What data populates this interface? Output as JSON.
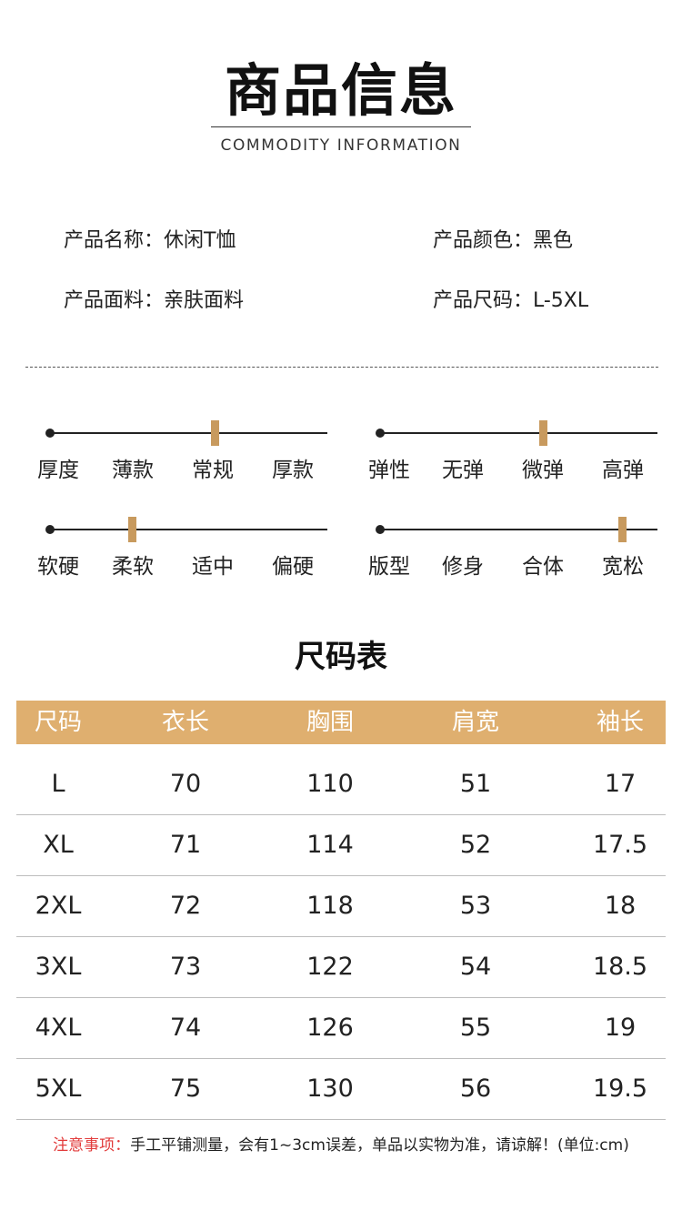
{
  "header": {
    "title": "商品信息",
    "subtitle": "COMMODITY INFORMATION"
  },
  "info": {
    "name": "产品名称：休闲T恤",
    "color": "产品颜色：黑色",
    "fabric": "产品面料：亲肤面料",
    "size": "产品尺码：L-5XL"
  },
  "scales": [
    {
      "labels": [
        "厚度",
        "薄款",
        "常规",
        "厚款"
      ],
      "selected": "常规"
    },
    {
      "labels": [
        "弹性",
        "无弹",
        "微弹",
        "高弹"
      ],
      "selected": "微弹"
    },
    {
      "labels": [
        "软硬",
        "柔软",
        "适中",
        "偏硬"
      ],
      "selected": "柔软"
    },
    {
      "labels": [
        "版型",
        "修身",
        "合体",
        "宽松"
      ],
      "selected": "宽松"
    }
  ],
  "size_chart": {
    "title": "尺码表",
    "headers": [
      "尺码",
      "衣长",
      "胸围",
      "肩宽",
      "袖长"
    ],
    "rows": [
      [
        "L",
        "70",
        "110",
        "51",
        "17"
      ],
      [
        "XL",
        "71",
        "114",
        "52",
        "17.5"
      ],
      [
        "2XL",
        "72",
        "118",
        "53",
        "18"
      ],
      [
        "3XL",
        "73",
        "122",
        "54",
        "18.5"
      ],
      [
        "4XL",
        "74",
        "126",
        "55",
        "19"
      ],
      [
        "5XL",
        "75",
        "130",
        "56",
        "19.5"
      ]
    ],
    "header_color": "#dfaf6f"
  },
  "note": {
    "label": "注意事项：",
    "text": "手工平铺测量，会有1~3cm误差，单品以实物为准，请谅解！(单位:cm)",
    "label_color": "#e23b3b"
  },
  "colors": {
    "accent": "#c89a5e"
  }
}
